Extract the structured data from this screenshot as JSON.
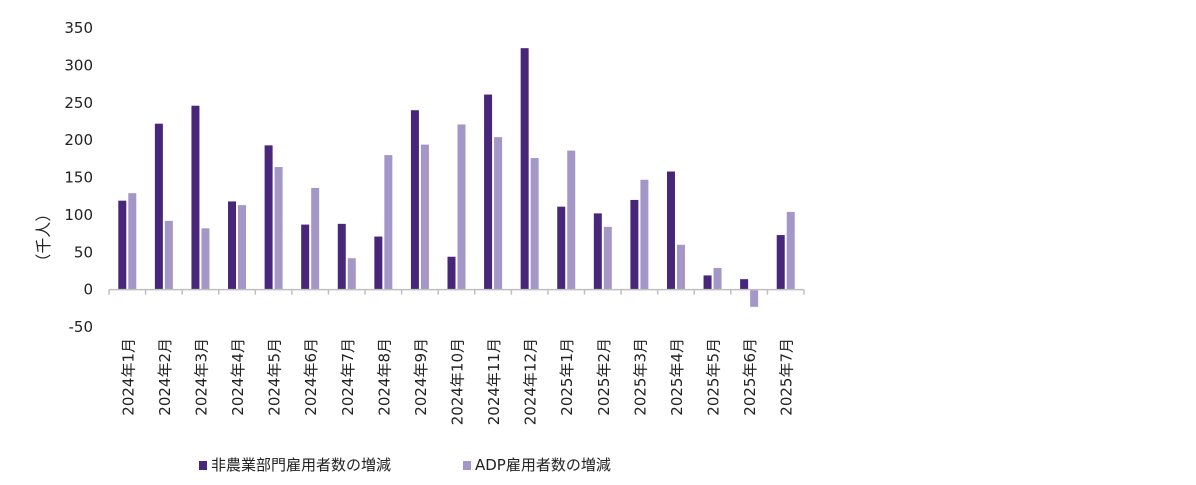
{
  "chart_data": {
    "type": "bar",
    "ylabel": "（千人）",
    "ylim": [
      -50,
      350
    ],
    "yticks": [
      350,
      300,
      250,
      200,
      150,
      100,
      50,
      0,
      -50
    ],
    "categories": [
      "2024年1月",
      "2024年2月",
      "2024年3月",
      "2024年4月",
      "2024年5月",
      "2024年6月",
      "2024年7月",
      "2024年8月",
      "2024年9月",
      "2024年10月",
      "2024年11月",
      "2024年12月",
      "2025年1月",
      "2025年2月",
      "2025年3月",
      "2025年4月",
      "2025年5月",
      "2025年6月",
      "2025年7月"
    ],
    "series": [
      {
        "name": "非農業部門雇用者数の増減",
        "color": "#48267a",
        "values": [
          119,
          222,
          246,
          118,
          193,
          87,
          88,
          71,
          240,
          44,
          261,
          323,
          111,
          102,
          120,
          158,
          19,
          14,
          73
        ]
      },
      {
        "name": "ADP雇用者数の増減",
        "color": "#a596c8",
        "values": [
          129,
          92,
          82,
          113,
          164,
          136,
          42,
          180,
          194,
          221,
          204,
          176,
          186,
          84,
          147,
          60,
          29,
          -23,
          104
        ]
      }
    ],
    "grid": false,
    "legend_position": "bottom"
  }
}
